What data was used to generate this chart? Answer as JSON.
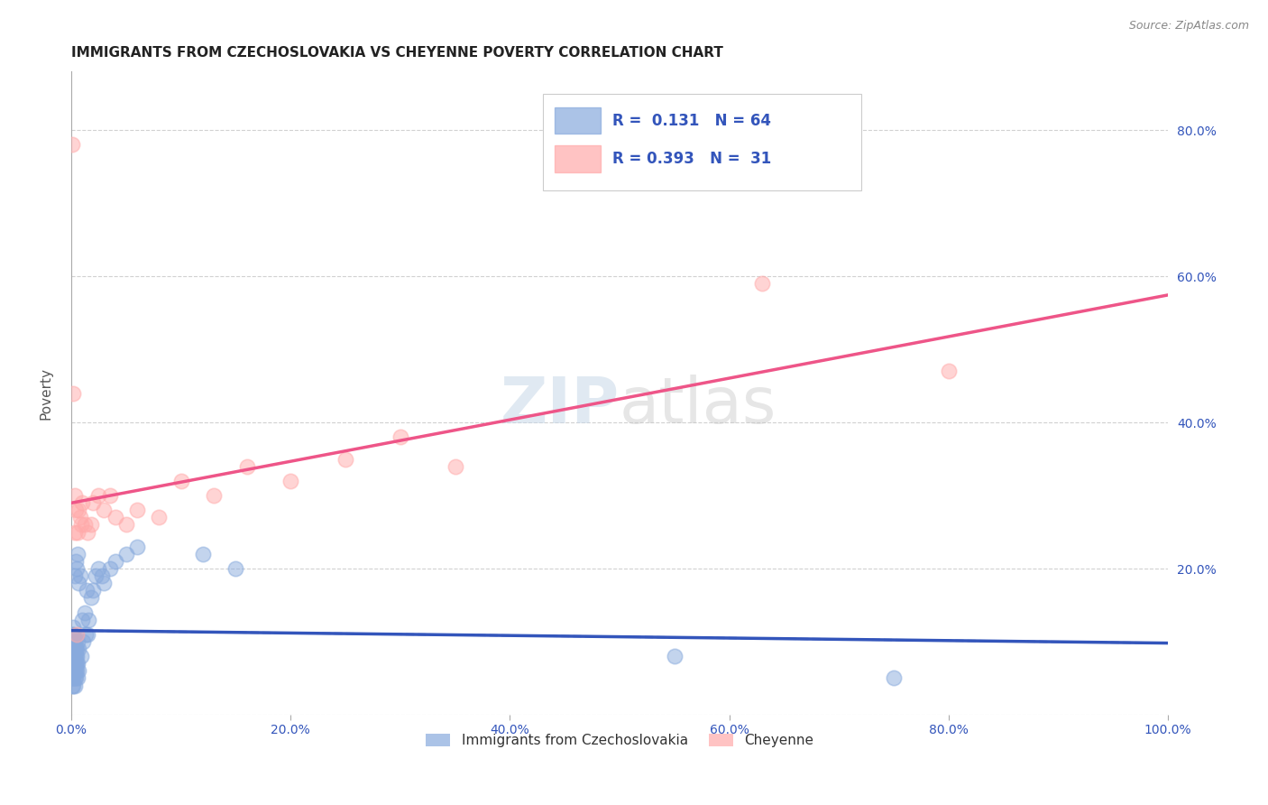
{
  "title": "IMMIGRANTS FROM CZECHOSLOVAKIA VS CHEYENNE POVERTY CORRELATION CHART",
  "source": "Source: ZipAtlas.com",
  "ylabel": "Poverty",
  "xlim": [
    0.0,
    1.0
  ],
  "ylim": [
    0.0,
    0.88
  ],
  "xticks": [
    0.0,
    0.2,
    0.4,
    0.6,
    0.8,
    1.0
  ],
  "xtick_labels": [
    "0.0%",
    "20.0%",
    "40.0%",
    "60.0%",
    "80.0%",
    "100.0%"
  ],
  "ytick_labels_right": [
    "",
    "20.0%",
    "40.0%",
    "60.0%",
    "80.0%"
  ],
  "yticks": [
    0.0,
    0.2,
    0.4,
    0.6,
    0.8
  ],
  "grid_color": "#cccccc",
  "background_color": "#ffffff",
  "legend_R1": "0.131",
  "legend_N1": "64",
  "legend_R2": "0.393",
  "legend_N2": "31",
  "blue_color": "#88aadd",
  "pink_color": "#ffaaaa",
  "blue_line_color": "#3355bb",
  "pink_line_color": "#ee5588",
  "blue_scatter_x": [
    0.001,
    0.001,
    0.001,
    0.001,
    0.001,
    0.001,
    0.001,
    0.002,
    0.002,
    0.002,
    0.002,
    0.002,
    0.002,
    0.002,
    0.002,
    0.003,
    0.003,
    0.003,
    0.003,
    0.003,
    0.003,
    0.003,
    0.003,
    0.004,
    0.004,
    0.004,
    0.004,
    0.004,
    0.004,
    0.005,
    0.005,
    0.005,
    0.005,
    0.005,
    0.006,
    0.006,
    0.006,
    0.006,
    0.007,
    0.007,
    0.007,
    0.008,
    0.009,
    0.01,
    0.011,
    0.012,
    0.013,
    0.014,
    0.015,
    0.016,
    0.018,
    0.02,
    0.022,
    0.025,
    0.028,
    0.03,
    0.035,
    0.04,
    0.05,
    0.06,
    0.12,
    0.15,
    0.55,
    0.75
  ],
  "blue_scatter_y": [
    0.04,
    0.05,
    0.07,
    0.08,
    0.09,
    0.1,
    0.11,
    0.04,
    0.05,
    0.06,
    0.07,
    0.08,
    0.1,
    0.11,
    0.12,
    0.04,
    0.05,
    0.06,
    0.07,
    0.08,
    0.09,
    0.1,
    0.19,
    0.05,
    0.06,
    0.07,
    0.08,
    0.09,
    0.21,
    0.06,
    0.07,
    0.08,
    0.09,
    0.2,
    0.05,
    0.07,
    0.1,
    0.22,
    0.06,
    0.09,
    0.18,
    0.19,
    0.08,
    0.13,
    0.1,
    0.14,
    0.11,
    0.17,
    0.11,
    0.13,
    0.16,
    0.17,
    0.19,
    0.2,
    0.19,
    0.18,
    0.2,
    0.21,
    0.22,
    0.23,
    0.22,
    0.2,
    0.08,
    0.05
  ],
  "pink_scatter_x": [
    0.001,
    0.002,
    0.003,
    0.003,
    0.004,
    0.005,
    0.006,
    0.007,
    0.008,
    0.009,
    0.01,
    0.012,
    0.015,
    0.018,
    0.02,
    0.025,
    0.03,
    0.035,
    0.04,
    0.05,
    0.06,
    0.08,
    0.1,
    0.13,
    0.16,
    0.2,
    0.25,
    0.3,
    0.35,
    0.63,
    0.8
  ],
  "pink_scatter_y": [
    0.78,
    0.44,
    0.25,
    0.3,
    0.28,
    0.11,
    0.25,
    0.28,
    0.27,
    0.26,
    0.29,
    0.26,
    0.25,
    0.26,
    0.29,
    0.3,
    0.28,
    0.3,
    0.27,
    0.26,
    0.28,
    0.27,
    0.32,
    0.3,
    0.34,
    0.32,
    0.35,
    0.38,
    0.34,
    0.59,
    0.47
  ],
  "blue_line_x_start": 0.0,
  "blue_line_x_end": 1.0,
  "pink_line_x_start": 0.0,
  "pink_line_x_end": 1.0,
  "title_fontsize": 11,
  "tick_fontsize": 10,
  "source_fontsize": 9,
  "ylabel_fontsize": 11
}
